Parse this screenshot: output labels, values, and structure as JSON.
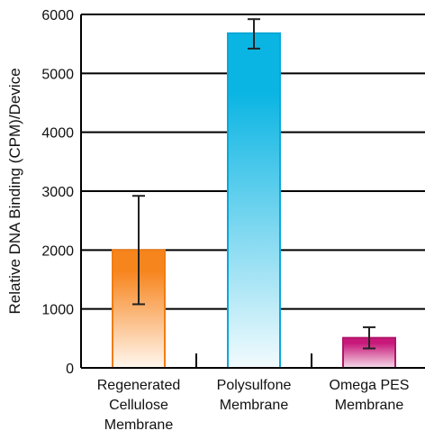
{
  "chart_data": {
    "type": "bar",
    "ylabel": "Relative DNA Binding (CPM)/Device",
    "ylim": [
      0,
      6000
    ],
    "yticks": [
      0,
      1000,
      2000,
      3000,
      4000,
      5000,
      6000
    ],
    "grid": true,
    "categories": [
      [
        "Regenerated",
        "Cellulose",
        "Membrane"
      ],
      [
        "Polysulfone",
        "Membrane"
      ],
      [
        "Omega PES",
        "Membrane"
      ]
    ],
    "values": [
      2000,
      5680,
      510
    ],
    "error_low": [
      1080,
      5420,
      330
    ],
    "error_high": [
      2920,
      5920,
      690
    ],
    "colors": [
      {
        "base": "#f7851e",
        "light": "#fff7ef",
        "stroke": "#f07d14"
      },
      {
        "base": "#0bb5e3",
        "light": "#f2fbfe",
        "stroke": "#0aa8d8"
      },
      {
        "base": "#c8197a",
        "light": "#f5dbe9",
        "stroke": "#b0156b"
      }
    ]
  }
}
